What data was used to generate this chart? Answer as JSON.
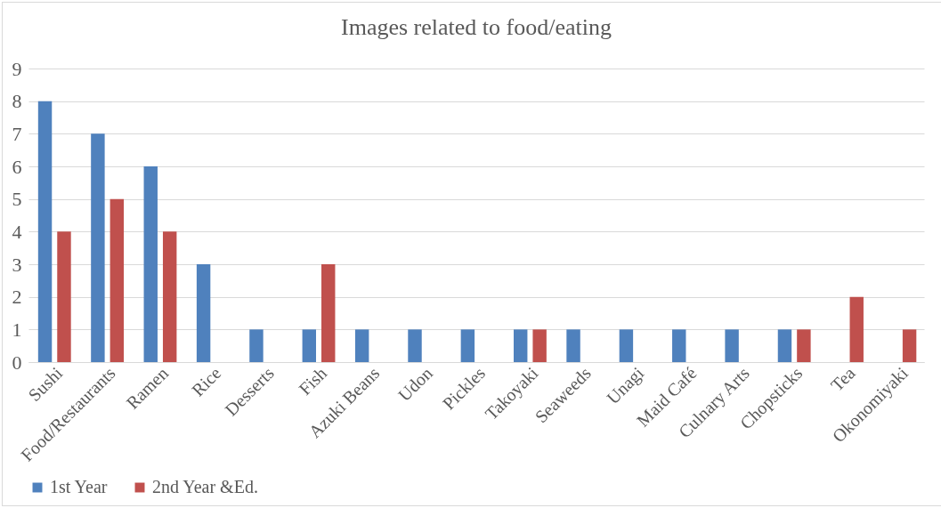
{
  "chart_data": {
    "type": "bar",
    "title": "Images related to food/eating",
    "categories": [
      "Sushi",
      "Food/Restaurants",
      "Ramen",
      "Rice",
      "Desserts",
      "Fish",
      "Azuki Beans",
      "Udon",
      "Pickles",
      "Takoyaki",
      "Seaweeds",
      "Unagi",
      "Maid Café",
      "Culnary Arts",
      "Chopsticks",
      "Tea",
      "Okonomiyaki"
    ],
    "series": [
      {
        "name": "1st Year",
        "color": "#4f81bd",
        "values": [
          8,
          7,
          6,
          3,
          1,
          1,
          1,
          1,
          1,
          1,
          1,
          1,
          1,
          1,
          1,
          null,
          null
        ]
      },
      {
        "name": "2nd Year &Ed.",
        "color": "#c0504d",
        "values": [
          4,
          5,
          4,
          null,
          null,
          3,
          null,
          null,
          null,
          1,
          null,
          null,
          null,
          null,
          1,
          2,
          1
        ]
      }
    ],
    "ylim": [
      0,
      9
    ],
    "yticks": [
      0,
      1,
      2,
      3,
      4,
      5,
      6,
      7,
      8,
      9
    ],
    "grid": "y",
    "legend": "bottom"
  }
}
